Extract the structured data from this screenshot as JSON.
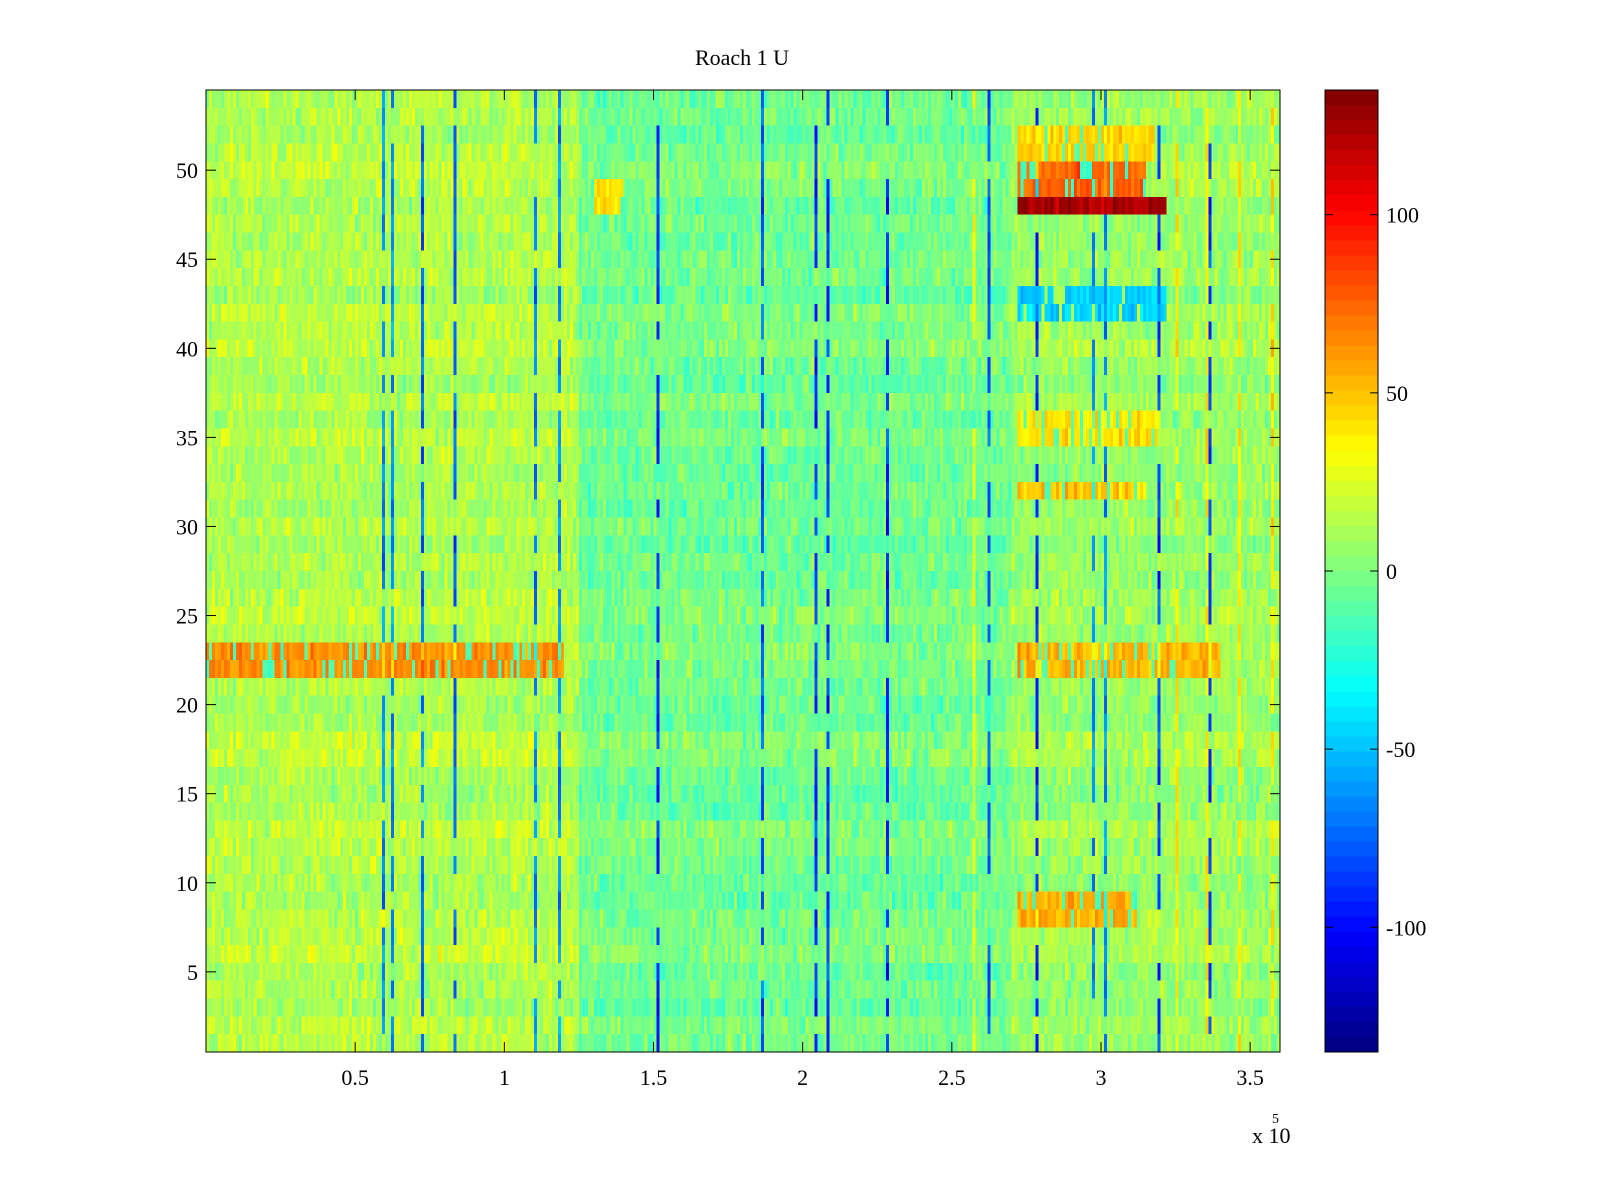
{
  "chart_data": {
    "type": "heatmap",
    "title": "Roach 1 U",
    "xlabel": "",
    "ylabel": "",
    "x_exponent_label": "x 10",
    "x_exponent_power": "5",
    "xlim": [
      0,
      360000
    ],
    "ylim": [
      0.5,
      54.5
    ],
    "rows": 54,
    "columns": 360,
    "xticks": [
      {
        "value": 50000,
        "label": "0.5"
      },
      {
        "value": 100000,
        "label": "1"
      },
      {
        "value": 150000,
        "label": "1.5"
      },
      {
        "value": 200000,
        "label": "2"
      },
      {
        "value": 250000,
        "label": "2.5"
      },
      {
        "value": 300000,
        "label": "3"
      },
      {
        "value": 350000,
        "label": "3.5"
      }
    ],
    "yticks": [
      {
        "value": 5,
        "label": "5"
      },
      {
        "value": 10,
        "label": "10"
      },
      {
        "value": 15,
        "label": "15"
      },
      {
        "value": 20,
        "label": "20"
      },
      {
        "value": 25,
        "label": "25"
      },
      {
        "value": 30,
        "label": "30"
      },
      {
        "value": 35,
        "label": "35"
      },
      {
        "value": 40,
        "label": "40"
      },
      {
        "value": 45,
        "label": "45"
      },
      {
        "value": 50,
        "label": "50"
      }
    ],
    "colorbar": {
      "colormap": "jet",
      "range": [
        -135,
        135
      ],
      "ticks": [
        {
          "value": -100,
          "label": "-100"
        },
        {
          "value": -50,
          "label": "-50"
        },
        {
          "value": 0,
          "label": "0"
        },
        {
          "value": 50,
          "label": "50"
        },
        {
          "value": 100,
          "label": "100"
        }
      ]
    },
    "features": [
      {
        "rows": [
          47.5,
          48.5
        ],
        "x": [
          272000,
          322000
        ],
        "value": 125
      },
      {
        "rows": [
          48.5,
          50.5
        ],
        "x": [
          272000,
          315000
        ],
        "value": 85
      },
      {
        "rows": [
          50.5,
          52.5
        ],
        "x": [
          272000,
          318000
        ],
        "value": 50
      },
      {
        "rows": [
          41.5,
          43.5
        ],
        "x": [
          272000,
          322000
        ],
        "value": -55
      },
      {
        "rows": [
          21.5,
          23.5
        ],
        "x": [
          272000,
          340000
        ],
        "value": 60
      },
      {
        "rows": [
          21.5,
          23.5
        ],
        "x": [
          0,
          120000
        ],
        "value": 70
      },
      {
        "rows": [
          7.5,
          9.5
        ],
        "x": [
          272000,
          312000
        ],
        "value": 65
      },
      {
        "rows": [
          31.5,
          32.5
        ],
        "x": [
          272000,
          315000
        ],
        "value": 55
      },
      {
        "rows": [
          34.5,
          36.5
        ],
        "x": [
          272000,
          320000
        ],
        "value": 45
      },
      {
        "rows": [
          47.5,
          49.5
        ],
        "x": [
          130000,
          140000
        ],
        "value": 50
      }
    ]
  }
}
